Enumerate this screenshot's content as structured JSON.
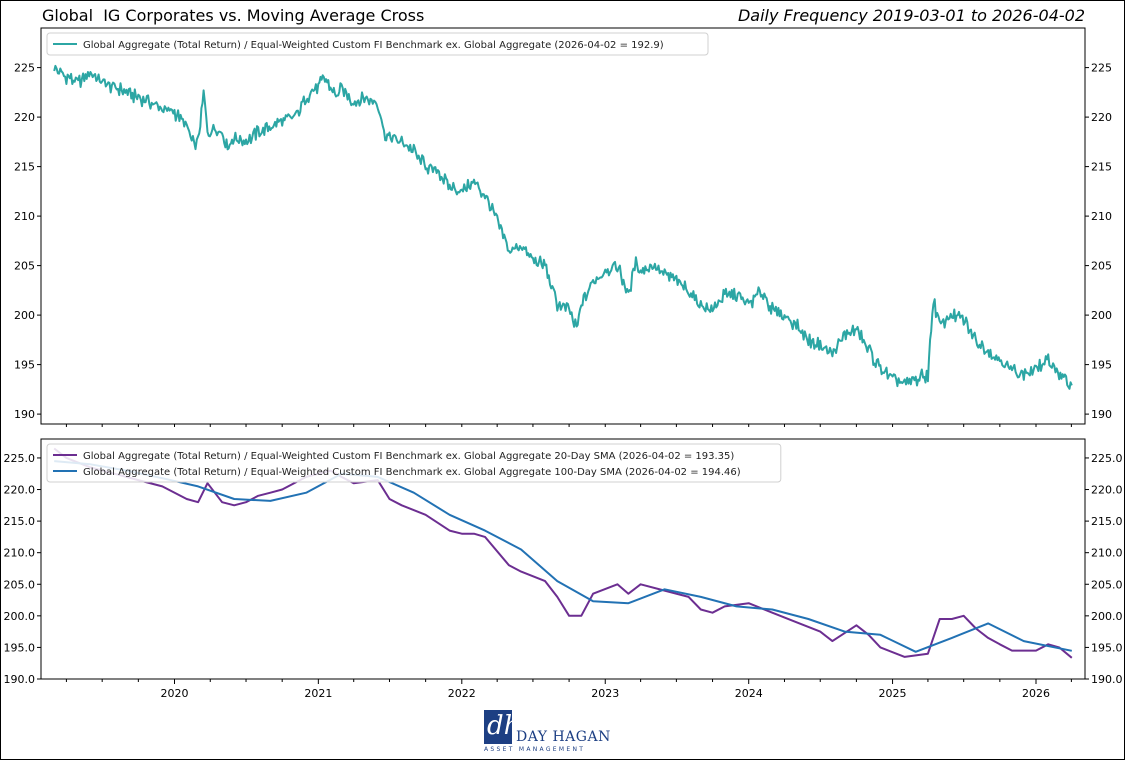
{
  "header": {
    "title": "Global  IG Corporates vs. Moving Average Cross",
    "subtitle": "Daily Frequency 2019-03-01 to 2026-04-02"
  },
  "logo": {
    "name": "DAY HAGAN",
    "sub": "ASSET MANAGEMENT",
    "mark": "dh"
  },
  "colors": {
    "ratio": "#2ca6a4",
    "sma20": "#6c2e91",
    "sma100": "#2272b4"
  },
  "chart_data": [
    {
      "type": "line",
      "x_range": [
        "2019-03-01",
        "2026-04-02"
      ],
      "ylim": [
        189,
        229
      ],
      "yticks": [
        190,
        195,
        200,
        205,
        210,
        215,
        220,
        225
      ],
      "ytick_labels": [
        "190",
        "195",
        "200",
        "205",
        "210",
        "215",
        "220",
        "225"
      ],
      "legend_position": "upper-left",
      "series": [
        {
          "name": "Global Aggregate (Total Return) / Equal-Weighted Custom FI Benchmark ex. Global Aggregate (2026-04-02 = 192.9)",
          "points": [
            [
              "2019-03-01",
              225.0
            ],
            [
              "2019-04-01",
              224.0
            ],
            [
              "2019-05-01",
              223.5
            ],
            [
              "2019-06-01",
              224.5
            ],
            [
              "2019-07-01",
              223.5
            ],
            [
              "2019-08-01",
              223.0
            ],
            [
              "2019-09-01",
              222.5
            ],
            [
              "2019-10-01",
              222.0
            ],
            [
              "2019-11-01",
              221.5
            ],
            [
              "2019-12-01",
              220.8
            ],
            [
              "2020-01-01",
              220.5
            ],
            [
              "2020-02-01",
              219.0
            ],
            [
              "2020-02-20",
              217.0
            ],
            [
              "2020-03-01",
              217.5
            ],
            [
              "2020-03-15",
              222.5
            ],
            [
              "2020-03-25",
              218.5
            ],
            [
              "2020-04-15",
              219.0
            ],
            [
              "2020-05-01",
              218.5
            ],
            [
              "2020-05-15",
              217.0
            ],
            [
              "2020-06-01",
              218.0
            ],
            [
              "2020-07-01",
              217.5
            ],
            [
              "2020-08-01",
              218.5
            ],
            [
              "2020-09-01",
              219.0
            ],
            [
              "2020-10-01",
              219.5
            ],
            [
              "2020-11-01",
              220.0
            ],
            [
              "2020-12-01",
              222.0
            ],
            [
              "2021-01-01",
              223.0
            ],
            [
              "2021-01-15",
              224.0
            ],
            [
              "2021-02-01",
              223.0
            ],
            [
              "2021-02-15",
              222.0
            ],
            [
              "2021-03-01",
              223.0
            ],
            [
              "2021-04-01",
              221.5
            ],
            [
              "2021-05-01",
              222.0
            ],
            [
              "2021-06-01",
              221.5
            ],
            [
              "2021-06-20",
              218.0
            ],
            [
              "2021-07-01",
              218.0
            ],
            [
              "2021-08-01",
              217.5
            ],
            [
              "2021-09-01",
              216.5
            ],
            [
              "2021-10-01",
              215.0
            ],
            [
              "2021-11-01",
              214.5
            ],
            [
              "2021-12-01",
              213.0
            ],
            [
              "2022-01-01",
              212.5
            ],
            [
              "2022-02-01",
              213.5
            ],
            [
              "2022-03-01",
              212.0
            ],
            [
              "2022-04-01",
              209.5
            ],
            [
              "2022-05-01",
              206.5
            ],
            [
              "2022-06-01",
              207.0
            ],
            [
              "2022-07-01",
              205.5
            ],
            [
              "2022-08-01",
              205.0
            ],
            [
              "2022-09-01",
              201.0
            ],
            [
              "2022-10-01",
              200.5
            ],
            [
              "2022-10-20",
              198.5
            ],
            [
              "2022-11-01",
              201.0
            ],
            [
              "2022-12-01",
              203.5
            ],
            [
              "2023-01-01",
              204.5
            ],
            [
              "2023-02-01",
              205.0
            ],
            [
              "2023-03-01",
              202.0
            ],
            [
              "2023-03-20",
              205.5
            ],
            [
              "2023-04-01",
              204.5
            ],
            [
              "2023-05-01",
              205.0
            ],
            [
              "2023-06-01",
              204.0
            ],
            [
              "2023-07-01",
              203.5
            ],
            [
              "2023-08-01",
              202.5
            ],
            [
              "2023-09-01",
              201.0
            ],
            [
              "2023-10-01",
              200.5
            ],
            [
              "2023-11-01",
              202.0
            ],
            [
              "2023-12-01",
              202.0
            ],
            [
              "2024-01-01",
              201.0
            ],
            [
              "2024-02-01",
              202.5
            ],
            [
              "2024-03-01",
              200.5
            ],
            [
              "2024-04-01",
              200.0
            ],
            [
              "2024-05-01",
              199.0
            ],
            [
              "2024-06-01",
              197.5
            ],
            [
              "2024-07-01",
              197.0
            ],
            [
              "2024-08-01",
              196.0
            ],
            [
              "2024-09-01",
              198.0
            ],
            [
              "2024-10-01",
              198.5
            ],
            [
              "2024-11-01",
              196.5
            ],
            [
              "2024-12-01",
              194.5
            ],
            [
              "2025-01-01",
              193.5
            ],
            [
              "2025-02-01",
              193.0
            ],
            [
              "2025-03-01",
              193.5
            ],
            [
              "2025-04-01",
              194.0
            ],
            [
              "2025-04-15",
              201.5
            ],
            [
              "2025-05-01",
              199.0
            ],
            [
              "2025-06-01",
              200.0
            ],
            [
              "2025-07-01",
              199.5
            ],
            [
              "2025-08-01",
              197.5
            ],
            [
              "2025-09-01",
              196.5
            ],
            [
              "2025-10-01",
              195.5
            ],
            [
              "2025-11-01",
              194.5
            ],
            [
              "2025-12-01",
              194.0
            ],
            [
              "2026-01-01",
              194.5
            ],
            [
              "2026-02-01",
              195.5
            ],
            [
              "2026-03-01",
              194.0
            ],
            [
              "2026-04-02",
              192.9
            ]
          ]
        }
      ]
    },
    {
      "type": "line",
      "x_range": [
        "2019-03-01",
        "2026-04-02"
      ],
      "ylim": [
        190,
        228
      ],
      "yticks": [
        190,
        195,
        200,
        205,
        210,
        215,
        220,
        225
      ],
      "ytick_labels": [
        "190.0",
        "195.0",
        "200.0",
        "205.0",
        "210.0",
        "215.0",
        "220.0",
        "225.0"
      ],
      "xticks": [
        "2020-01-01",
        "2021-01-01",
        "2022-01-01",
        "2023-01-01",
        "2024-01-01",
        "2025-01-01",
        "2026-01-01"
      ],
      "xtick_labels": [
        "2020",
        "2021",
        "2022",
        "2023",
        "2024",
        "2025",
        "2026"
      ],
      "legend_position": "upper-left",
      "series": [
        {
          "name": "Global Aggregate (Total Return) / Equal-Weighted Custom FI Benchmark ex. Global Aggregate 20-Day SMA (2026-04-02 = 193.35)",
          "points": [
            [
              "2019-03-01",
              226.5
            ],
            [
              "2019-04-01",
              225.0
            ],
            [
              "2019-06-01",
              223.5
            ],
            [
              "2019-08-01",
              222.5
            ],
            [
              "2019-10-01",
              221.5
            ],
            [
              "2019-12-01",
              220.5
            ],
            [
              "2020-02-01",
              218.5
            ],
            [
              "2020-03-01",
              218.0
            ],
            [
              "2020-03-25",
              221.0
            ],
            [
              "2020-05-01",
              218.0
            ],
            [
              "2020-06-01",
              217.5
            ],
            [
              "2020-07-01",
              218.0
            ],
            [
              "2020-08-01",
              219.0
            ],
            [
              "2020-09-01",
              219.5
            ],
            [
              "2020-10-01",
              220.0
            ],
            [
              "2020-12-01",
              222.0
            ],
            [
              "2021-02-01",
              223.0
            ],
            [
              "2021-03-01",
              222.0
            ],
            [
              "2021-04-01",
              221.0
            ],
            [
              "2021-06-01",
              221.5
            ],
            [
              "2021-07-01",
              218.5
            ],
            [
              "2021-08-01",
              217.5
            ],
            [
              "2021-10-01",
              216.0
            ],
            [
              "2021-12-01",
              213.5
            ],
            [
              "2022-01-01",
              213.0
            ],
            [
              "2022-02-01",
              213.0
            ],
            [
              "2022-03-01",
              212.5
            ],
            [
              "2022-05-01",
              208.0
            ],
            [
              "2022-06-01",
              207.0
            ],
            [
              "2022-08-01",
              205.5
            ],
            [
              "2022-09-01",
              203.0
            ],
            [
              "2022-10-01",
              200.0
            ],
            [
              "2022-11-01",
              200.0
            ],
            [
              "2022-12-01",
              203.5
            ],
            [
              "2023-02-01",
              205.0
            ],
            [
              "2023-03-01",
              203.5
            ],
            [
              "2023-04-01",
              205.0
            ],
            [
              "2023-06-01",
              204.0
            ],
            [
              "2023-08-01",
              203.0
            ],
            [
              "2023-09-01",
              201.0
            ],
            [
              "2023-10-01",
              200.5
            ],
            [
              "2023-11-01",
              201.5
            ],
            [
              "2024-01-01",
              202.0
            ],
            [
              "2024-03-01",
              200.5
            ],
            [
              "2024-05-01",
              199.0
            ],
            [
              "2024-07-01",
              197.5
            ],
            [
              "2024-08-01",
              196.0
            ],
            [
              "2024-10-01",
              198.5
            ],
            [
              "2024-11-01",
              197.0
            ],
            [
              "2024-12-01",
              195.0
            ],
            [
              "2025-02-01",
              193.5
            ],
            [
              "2025-04-01",
              194.0
            ],
            [
              "2025-05-01",
              199.5
            ],
            [
              "2025-06-01",
              199.5
            ],
            [
              "2025-07-01",
              200.0
            ],
            [
              "2025-08-01",
              198.0
            ],
            [
              "2025-09-01",
              196.5
            ],
            [
              "2025-10-01",
              195.5
            ],
            [
              "2025-11-01",
              194.5
            ],
            [
              "2026-01-01",
              194.5
            ],
            [
              "2026-02-01",
              195.5
            ],
            [
              "2026-03-01",
              195.0
            ],
            [
              "2026-04-02",
              193.35
            ]
          ]
        },
        {
          "name": "Global Aggregate (Total Return) / Equal-Weighted Custom FI Benchmark ex. Global Aggregate 100-Day SMA (2026-04-02 = 194.46)",
          "points": [
            [
              "2019-03-01",
              224.5
            ],
            [
              "2019-06-01",
              224.0
            ],
            [
              "2019-09-01",
              223.0
            ],
            [
              "2019-12-01",
              221.8
            ],
            [
              "2020-03-01",
              220.5
            ],
            [
              "2020-06-01",
              218.5
            ],
            [
              "2020-09-01",
              218.2
            ],
            [
              "2020-12-01",
              219.5
            ],
            [
              "2021-03-01",
              222.5
            ],
            [
              "2021-06-01",
              222.0
            ],
            [
              "2021-09-01",
              219.5
            ],
            [
              "2021-12-01",
              216.0
            ],
            [
              "2022-03-01",
              213.5
            ],
            [
              "2022-06-01",
              210.5
            ],
            [
              "2022-09-01",
              205.5
            ],
            [
              "2022-12-01",
              202.3
            ],
            [
              "2023-03-01",
              202.0
            ],
            [
              "2023-06-01",
              204.2
            ],
            [
              "2023-09-01",
              203.0
            ],
            [
              "2023-12-01",
              201.5
            ],
            [
              "2024-03-01",
              201.0
            ],
            [
              "2024-06-01",
              199.5
            ],
            [
              "2024-09-01",
              197.5
            ],
            [
              "2024-12-01",
              197.0
            ],
            [
              "2025-03-01",
              194.3
            ],
            [
              "2025-06-01",
              196.5
            ],
            [
              "2025-09-01",
              198.8
            ],
            [
              "2025-12-01",
              196.0
            ],
            [
              "2026-04-02",
              194.46
            ]
          ]
        }
      ]
    }
  ]
}
